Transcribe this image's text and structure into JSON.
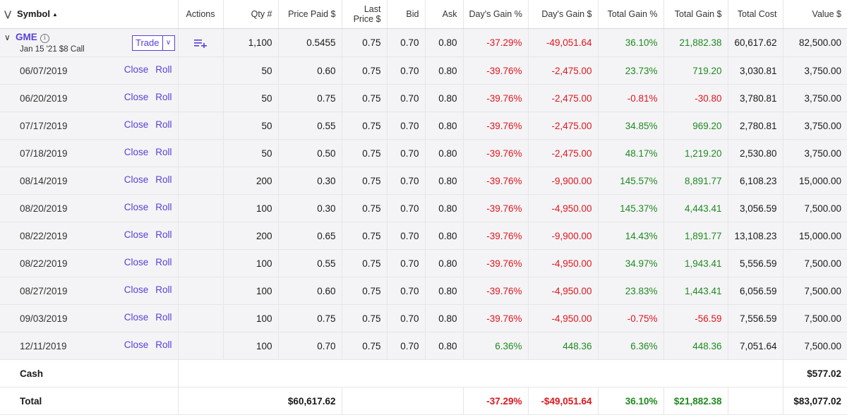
{
  "header": {
    "symbol": "Symbol",
    "actions": "Actions",
    "qty": "Qty #",
    "price_paid": "Price Paid $",
    "last_price_1": "Last",
    "last_price_2": "Price $",
    "bid": "Bid",
    "ask": "Ask",
    "days_gain_pct": "Day's Gain %",
    "days_gain_usd": "Day's Gain $",
    "total_gain_pct": "Total Gain %",
    "total_gain_usd": "Total Gain $",
    "total_cost": "Total Cost",
    "value": "Value $"
  },
  "position": {
    "symbol": "GME",
    "description": "Jan 15 '21 $8 Call",
    "trade_label": "Trade",
    "qty": "1,100",
    "price_paid": "0.5455",
    "last_price": "0.75",
    "bid": "0.70",
    "ask": "0.80",
    "days_gain_pct": "-37.29%",
    "days_gain_usd": "-49,051.64",
    "total_gain_pct": "36.10%",
    "total_gain_usd": "21,882.38",
    "total_cost": "60,617.62",
    "value": "82,500.00"
  },
  "lot_actions": {
    "close": "Close",
    "roll": "Roll"
  },
  "lots": [
    {
      "date": "06/07/2019",
      "qty": "50",
      "price_paid": "0.60",
      "last_price": "0.75",
      "bid": "0.70",
      "ask": "0.80",
      "days_gain_pct": "-39.76%",
      "days_gain_usd": "-2,475.00",
      "total_gain_pct": "23.73%",
      "total_gain_usd": "719.20",
      "total_cost": "3,030.81",
      "value": "3,750.00"
    },
    {
      "date": "06/20/2019",
      "qty": "50",
      "price_paid": "0.75",
      "last_price": "0.75",
      "bid": "0.70",
      "ask": "0.80",
      "days_gain_pct": "-39.76%",
      "days_gain_usd": "-2,475.00",
      "total_gain_pct": "-0.81%",
      "total_gain_usd": "-30.80",
      "total_cost": "3,780.81",
      "value": "3,750.00"
    },
    {
      "date": "07/17/2019",
      "qty": "50",
      "price_paid": "0.55",
      "last_price": "0.75",
      "bid": "0.70",
      "ask": "0.80",
      "days_gain_pct": "-39.76%",
      "days_gain_usd": "-2,475.00",
      "total_gain_pct": "34.85%",
      "total_gain_usd": "969.20",
      "total_cost": "2,780.81",
      "value": "3,750.00"
    },
    {
      "date": "07/18/2019",
      "qty": "50",
      "price_paid": "0.50",
      "last_price": "0.75",
      "bid": "0.70",
      "ask": "0.80",
      "days_gain_pct": "-39.76%",
      "days_gain_usd": "-2,475.00",
      "total_gain_pct": "48.17%",
      "total_gain_usd": "1,219.20",
      "total_cost": "2,530.80",
      "value": "3,750.00"
    },
    {
      "date": "08/14/2019",
      "qty": "200",
      "price_paid": "0.30",
      "last_price": "0.75",
      "bid": "0.70",
      "ask": "0.80",
      "days_gain_pct": "-39.76%",
      "days_gain_usd": "-9,900.00",
      "total_gain_pct": "145.57%",
      "total_gain_usd": "8,891.77",
      "total_cost": "6,108.23",
      "value": "15,000.00"
    },
    {
      "date": "08/20/2019",
      "qty": "100",
      "price_paid": "0.30",
      "last_price": "0.75",
      "bid": "0.70",
      "ask": "0.80",
      "days_gain_pct": "-39.76%",
      "days_gain_usd": "-4,950.00",
      "total_gain_pct": "145.37%",
      "total_gain_usd": "4,443.41",
      "total_cost": "3,056.59",
      "value": "7,500.00"
    },
    {
      "date": "08/22/2019",
      "qty": "200",
      "price_paid": "0.65",
      "last_price": "0.75",
      "bid": "0.70",
      "ask": "0.80",
      "days_gain_pct": "-39.76%",
      "days_gain_usd": "-9,900.00",
      "total_gain_pct": "14.43%",
      "total_gain_usd": "1,891.77",
      "total_cost": "13,108.23",
      "value": "15,000.00"
    },
    {
      "date": "08/22/2019",
      "qty": "100",
      "price_paid": "0.55",
      "last_price": "0.75",
      "bid": "0.70",
      "ask": "0.80",
      "days_gain_pct": "-39.76%",
      "days_gain_usd": "-4,950.00",
      "total_gain_pct": "34.97%",
      "total_gain_usd": "1,943.41",
      "total_cost": "5,556.59",
      "value": "7,500.00"
    },
    {
      "date": "08/27/2019",
      "qty": "100",
      "price_paid": "0.60",
      "last_price": "0.75",
      "bid": "0.70",
      "ask": "0.80",
      "days_gain_pct": "-39.76%",
      "days_gain_usd": "-4,950.00",
      "total_gain_pct": "23.83%",
      "total_gain_usd": "1,443.41",
      "total_cost": "6,056.59",
      "value": "7,500.00"
    },
    {
      "date": "09/03/2019",
      "qty": "100",
      "price_paid": "0.75",
      "last_price": "0.75",
      "bid": "0.70",
      "ask": "0.80",
      "days_gain_pct": "-39.76%",
      "days_gain_usd": "-4,950.00",
      "total_gain_pct": "-0.75%",
      "total_gain_usd": "-56.59",
      "total_cost": "7,556.59",
      "value": "7,500.00"
    },
    {
      "date": "12/11/2019",
      "qty": "100",
      "price_paid": "0.70",
      "last_price": "0.75",
      "bid": "0.70",
      "ask": "0.80",
      "days_gain_pct": "6.36%",
      "days_gain_usd": "448.36",
      "total_gain_pct": "6.36%",
      "total_gain_usd": "448.36",
      "total_cost": "7,051.64",
      "value": "7,500.00"
    }
  ],
  "cash": {
    "label": "Cash",
    "value": "$577.02"
  },
  "total": {
    "label": "Total",
    "price_paid": "$60,617.62",
    "days_gain_pct": "-37.29%",
    "days_gain_usd": "-$49,051.64",
    "total_gain_pct": "36.10%",
    "total_gain_usd": "$21,882.38",
    "value": "$83,077.02"
  },
  "colors": {
    "accent": "#5a3fd6",
    "positive": "#1f8a1f",
    "negative": "#e0161d"
  }
}
